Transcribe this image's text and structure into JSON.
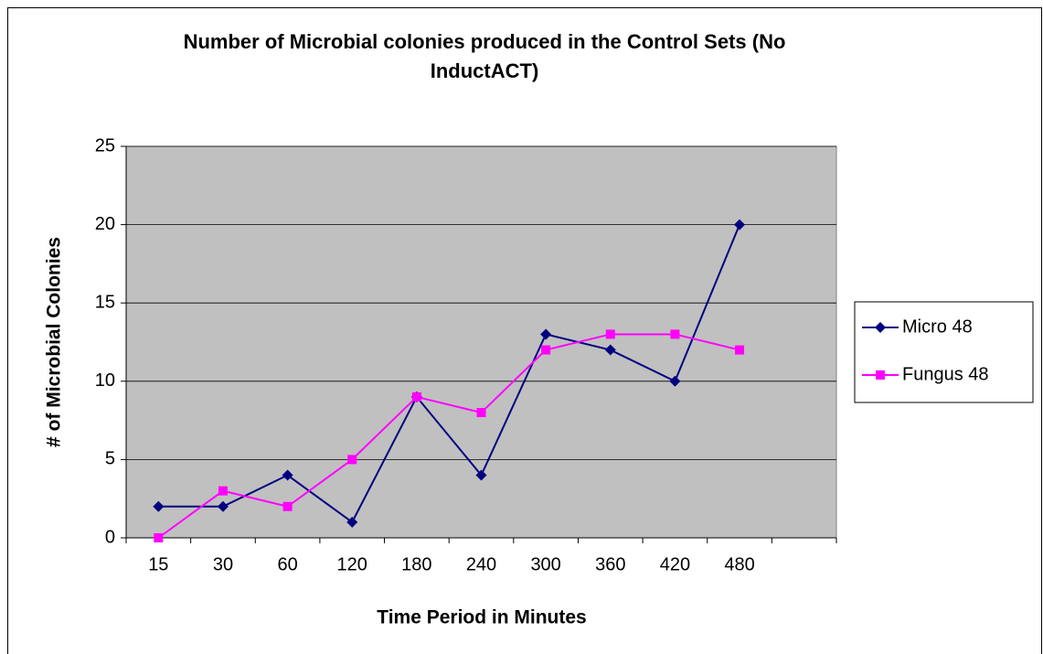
{
  "chart_data": {
    "type": "line",
    "title": "Number of Microbial colonies produced in the Control Sets (No InductACT)",
    "x_label": "Time Period in Minutes",
    "y_label": "# of Microbial Colonies",
    "categories": [
      "15",
      "30",
      "60",
      "120",
      "180",
      "240",
      "300",
      "360",
      "420",
      "480",
      null
    ],
    "series": [
      {
        "name": "Micro 48",
        "color": "#000080",
        "marker": "diamond",
        "values": [
          2,
          2,
          4,
          1,
          9,
          4,
          13,
          12,
          10,
          20,
          null
        ]
      },
      {
        "name": "Fungus 48",
        "color": "#ff00ff",
        "marker": "square",
        "values": [
          0,
          3,
          2,
          5,
          9,
          8,
          12,
          13,
          13,
          12,
          null
        ]
      }
    ],
    "ylim": [
      0,
      25
    ],
    "yticks": [
      0,
      5,
      10,
      15,
      20,
      25
    ],
    "grid": true,
    "legend": "right",
    "plot_background": "#c0c0c0"
  }
}
